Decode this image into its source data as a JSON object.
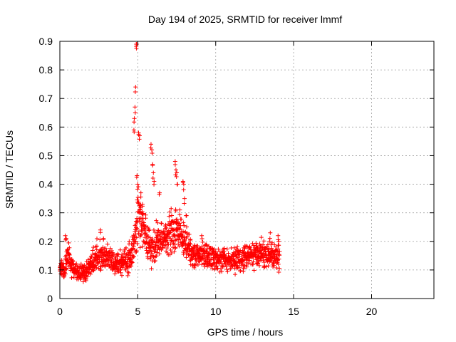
{
  "chart_data": {
    "type": "scatter",
    "title": "Day 194 of 2025, SRMTID for receiver lmmf",
    "xlabel": "GPS time / hours",
    "ylabel": "SRMTID / TECUs",
    "xlim": [
      0,
      24
    ],
    "ylim": [
      0,
      0.9
    ],
    "xticks": [
      0,
      5,
      10,
      15,
      20
    ],
    "yticks": [
      0,
      0.1,
      0.2,
      0.3,
      0.4,
      0.5,
      0.6,
      0.7,
      0.8,
      0.9
    ],
    "grid": true,
    "marker": "+",
    "series": [
      {
        "name": "SRMTID",
        "color": "#ff0000",
        "data_extent_hours": [
          0,
          14.1
        ],
        "profile": [
          {
            "x": 0.0,
            "y": 0.11,
            "spread": 0.035
          },
          {
            "x": 0.3,
            "y": 0.1,
            "spread": 0.03
          },
          {
            "x": 0.5,
            "y": 0.15,
            "spread": 0.05
          },
          {
            "x": 0.8,
            "y": 0.11,
            "spread": 0.035
          },
          {
            "x": 1.2,
            "y": 0.09,
            "spread": 0.03
          },
          {
            "x": 1.6,
            "y": 0.09,
            "spread": 0.035
          },
          {
            "x": 2.0,
            "y": 0.12,
            "spread": 0.04
          },
          {
            "x": 2.5,
            "y": 0.15,
            "spread": 0.045
          },
          {
            "x": 3.0,
            "y": 0.14,
            "spread": 0.04
          },
          {
            "x": 3.5,
            "y": 0.13,
            "spread": 0.04
          },
          {
            "x": 4.0,
            "y": 0.12,
            "spread": 0.04
          },
          {
            "x": 4.5,
            "y": 0.13,
            "spread": 0.045
          },
          {
            "x": 4.8,
            "y": 0.2,
            "spread": 0.06
          },
          {
            "x": 5.0,
            "y": 0.3,
            "spread": 0.1
          },
          {
            "x": 5.3,
            "y": 0.25,
            "spread": 0.08
          },
          {
            "x": 5.6,
            "y": 0.2,
            "spread": 0.06
          },
          {
            "x": 6.0,
            "y": 0.18,
            "spread": 0.06
          },
          {
            "x": 6.5,
            "y": 0.2,
            "spread": 0.06
          },
          {
            "x": 7.0,
            "y": 0.22,
            "spread": 0.07
          },
          {
            "x": 7.5,
            "y": 0.25,
            "spread": 0.07
          },
          {
            "x": 8.0,
            "y": 0.2,
            "spread": 0.06
          },
          {
            "x": 8.5,
            "y": 0.15,
            "spread": 0.045
          },
          {
            "x": 9.0,
            "y": 0.15,
            "spread": 0.04
          },
          {
            "x": 10.0,
            "y": 0.14,
            "spread": 0.04
          },
          {
            "x": 11.0,
            "y": 0.13,
            "spread": 0.04
          },
          {
            "x": 12.0,
            "y": 0.15,
            "spread": 0.045
          },
          {
            "x": 13.0,
            "y": 0.16,
            "spread": 0.045
          },
          {
            "x": 14.1,
            "y": 0.15,
            "spread": 0.045
          }
        ],
        "spikes": [
          {
            "x": 0.35,
            "y": 0.22
          },
          {
            "x": 0.4,
            "y": 0.21
          },
          {
            "x": 2.6,
            "y": 0.24
          },
          {
            "x": 2.8,
            "y": 0.21
          },
          {
            "x": 4.45,
            "y": 0.2
          },
          {
            "x": 4.75,
            "y": 0.59
          },
          {
            "x": 4.78,
            "y": 0.63
          },
          {
            "x": 4.82,
            "y": 0.67
          },
          {
            "x": 4.86,
            "y": 0.74
          },
          {
            "x": 4.9,
            "y": 0.89
          },
          {
            "x": 4.93,
            "y": 0.89
          },
          {
            "x": 4.95,
            "y": 0.43
          },
          {
            "x": 5.0,
            "y": 0.4
          },
          {
            "x": 5.05,
            "y": 0.58
          },
          {
            "x": 5.12,
            "y": 0.57
          },
          {
            "x": 5.2,
            "y": 0.37
          },
          {
            "x": 5.3,
            "y": 0.33
          },
          {
            "x": 5.85,
            "y": 0.54
          },
          {
            "x": 5.9,
            "y": 0.52
          },
          {
            "x": 5.95,
            "y": 0.47
          },
          {
            "x": 6.0,
            "y": 0.44
          },
          {
            "x": 6.05,
            "y": 0.41
          },
          {
            "x": 6.4,
            "y": 0.37
          },
          {
            "x": 7.4,
            "y": 0.48
          },
          {
            "x": 7.45,
            "y": 0.45
          },
          {
            "x": 7.5,
            "y": 0.44
          },
          {
            "x": 7.55,
            "y": 0.4
          },
          {
            "x": 7.9,
            "y": 0.41
          },
          {
            "x": 7.95,
            "y": 0.4
          },
          {
            "x": 8.0,
            "y": 0.35
          },
          {
            "x": 7.7,
            "y": 0.31
          },
          {
            "x": 8.1,
            "y": 0.29
          },
          {
            "x": 9.1,
            "y": 0.22
          },
          {
            "x": 13.5,
            "y": 0.23
          },
          {
            "x": 14.0,
            "y": 0.22
          }
        ]
      }
    ]
  }
}
